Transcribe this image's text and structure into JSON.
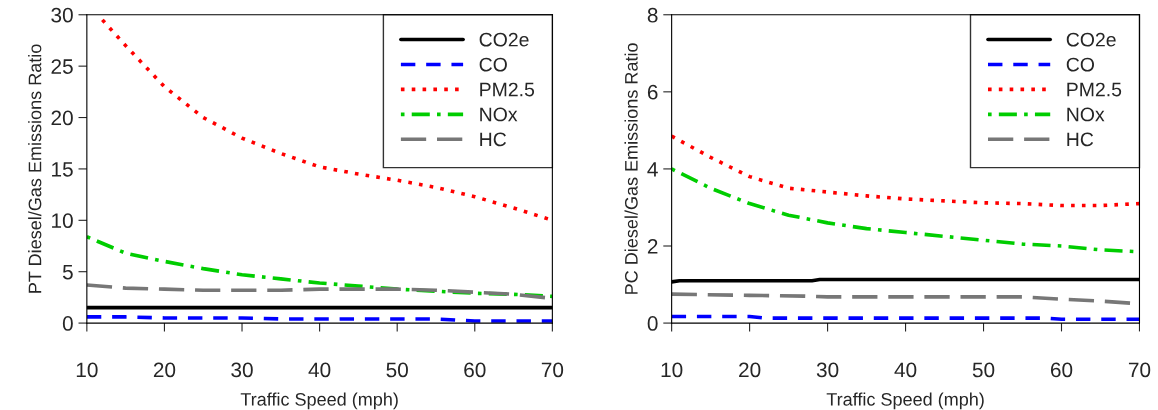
{
  "chart_data": [
    {
      "type": "line",
      "xlabel": "Traffic Speed (mph)",
      "ylabel": "PT Diesel/Gas Emissions Ratio",
      "xlim": [
        10,
        70
      ],
      "xticks": [
        10,
        20,
        30,
        40,
        50,
        60,
        70
      ],
      "ylim": [
        0,
        30
      ],
      "yticks": [
        0,
        5,
        10,
        15,
        20,
        25,
        30
      ],
      "legend": "top right",
      "grid": false,
      "x": [
        10,
        15,
        20,
        25,
        30,
        35,
        40,
        45,
        50,
        55,
        60,
        65,
        70
      ],
      "series": [
        {
          "name": "CO2e",
          "color": "#000000",
          "line_style": "solid",
          "values": [
            1.5,
            1.5,
            1.5,
            1.5,
            1.5,
            1.5,
            1.5,
            1.5,
            1.5,
            1.5,
            1.5,
            1.5,
            1.5
          ]
        },
        {
          "name": "CO",
          "color": "#0000ff",
          "line_style": "dashed",
          "values": [
            0.6,
            0.6,
            0.5,
            0.5,
            0.5,
            0.4,
            0.4,
            0.4,
            0.4,
            0.4,
            0.2,
            0.2,
            0.2
          ]
        },
        {
          "name": "PM2.5",
          "color": "#ff0000",
          "line_style": "dotted",
          "x": [
            12,
            15,
            20,
            25,
            30,
            35,
            40,
            45,
            50,
            55,
            60,
            65,
            70
          ],
          "values": [
            29.5,
            27,
            23,
            20,
            18,
            16.5,
            15.2,
            14.5,
            13.9,
            13.2,
            12.3,
            11.2,
            10
          ]
        },
        {
          "name": "NOx",
          "color": "#00cd00",
          "line_style": "dashdot",
          "values": [
            8.4,
            6.8,
            6.0,
            5.3,
            4.7,
            4.3,
            3.9,
            3.6,
            3.3,
            3.1,
            2.9,
            2.8,
            2.6
          ]
        },
        {
          "name": "HC",
          "color": "#777777",
          "line_style": "longdash",
          "values": [
            3.7,
            3.4,
            3.3,
            3.2,
            3.2,
            3.2,
            3.3,
            3.3,
            3.3,
            3.2,
            3.0,
            2.8,
            2.4
          ]
        }
      ]
    },
    {
      "type": "line",
      "xlabel": "Traffic Speed (mph)",
      "ylabel": "PC Diesel/Gas Emissions Ratio",
      "xlim": [
        10,
        70
      ],
      "xticks": [
        10,
        20,
        30,
        40,
        50,
        60,
        70
      ],
      "ylim": [
        0,
        8
      ],
      "yticks": [
        0,
        2,
        4,
        6,
        8
      ],
      "legend": "top right",
      "grid": false,
      "x": [
        10,
        15,
        20,
        25,
        30,
        35,
        40,
        45,
        50,
        55,
        60,
        65,
        70
      ],
      "series": [
        {
          "name": "CO2e",
          "color": "#000000",
          "line_style": "solid",
          "x": [
            10,
            11,
            28,
            29,
            70
          ],
          "values": [
            1.07,
            1.1,
            1.1,
            1.13,
            1.13
          ]
        },
        {
          "name": "CO",
          "color": "#0000ff",
          "line_style": "dashed",
          "x": [
            10,
            20,
            22,
            58,
            60,
            70
          ],
          "values": [
            0.17,
            0.17,
            0.13,
            0.13,
            0.1,
            0.1
          ]
        },
        {
          "name": "PM2.5",
          "color": "#ff0000",
          "line_style": "dotted",
          "values": [
            4.85,
            4.3,
            3.8,
            3.5,
            3.4,
            3.3,
            3.22,
            3.17,
            3.12,
            3.1,
            3.05,
            3.05,
            3.1
          ]
        },
        {
          "name": "NOx",
          "color": "#00cd00",
          "line_style": "dashdot",
          "values": [
            4.0,
            3.5,
            3.1,
            2.8,
            2.6,
            2.45,
            2.35,
            2.25,
            2.15,
            2.05,
            2.0,
            1.9,
            1.85
          ]
        },
        {
          "name": "HC",
          "color": "#777777",
          "line_style": "longdash",
          "x": [
            10,
            20,
            27,
            30,
            55,
            60,
            65,
            70
          ],
          "values": [
            0.75,
            0.72,
            0.7,
            0.68,
            0.68,
            0.62,
            0.57,
            0.5
          ]
        }
      ]
    }
  ]
}
